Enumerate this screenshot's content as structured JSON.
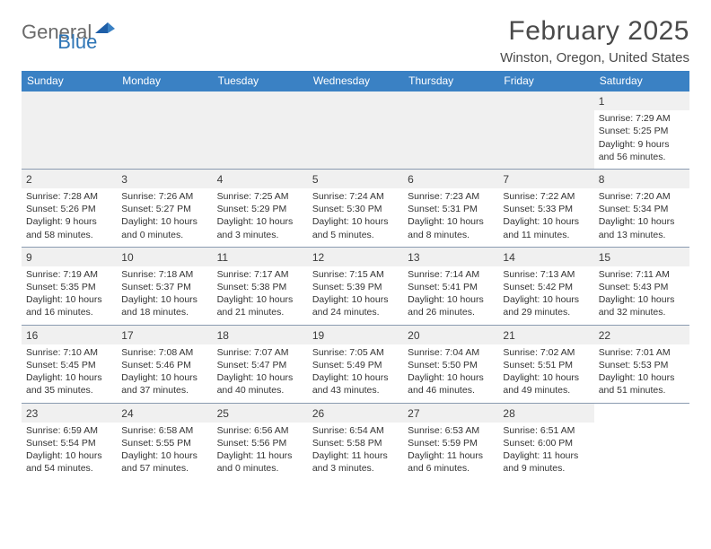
{
  "logo": {
    "text1": "General",
    "text2": "Blue"
  },
  "title": "February 2025",
  "location": "Winston, Oregon, United States",
  "colors": {
    "header_bg": "#3a81c4",
    "header_text": "#ffffff",
    "rule": "#8a9bb0",
    "cell_grey": "#f0f0f0",
    "text": "#333333",
    "logo_grey": "#6a6a6a",
    "logo_blue": "#2e75b6"
  },
  "day_names": [
    "Sunday",
    "Monday",
    "Tuesday",
    "Wednesday",
    "Thursday",
    "Friday",
    "Saturday"
  ],
  "weeks": [
    [
      {
        "empty": true,
        "grey": true
      },
      {
        "empty": true,
        "grey": true
      },
      {
        "empty": true,
        "grey": true
      },
      {
        "empty": true,
        "grey": true
      },
      {
        "empty": true,
        "grey": true
      },
      {
        "empty": true,
        "grey": true
      },
      {
        "n": "1",
        "sr": "7:29 AM",
        "ss": "5:25 PM",
        "dl": "9 hours and 56 minutes.",
        "grey_num": true
      }
    ],
    [
      {
        "n": "2",
        "sr": "7:28 AM",
        "ss": "5:26 PM",
        "dl": "9 hours and 58 minutes."
      },
      {
        "n": "3",
        "sr": "7:26 AM",
        "ss": "5:27 PM",
        "dl": "10 hours and 0 minutes."
      },
      {
        "n": "4",
        "sr": "7:25 AM",
        "ss": "5:29 PM",
        "dl": "10 hours and 3 minutes."
      },
      {
        "n": "5",
        "sr": "7:24 AM",
        "ss": "5:30 PM",
        "dl": "10 hours and 5 minutes."
      },
      {
        "n": "6",
        "sr": "7:23 AM",
        "ss": "5:31 PM",
        "dl": "10 hours and 8 minutes."
      },
      {
        "n": "7",
        "sr": "7:22 AM",
        "ss": "5:33 PM",
        "dl": "10 hours and 11 minutes."
      },
      {
        "n": "8",
        "sr": "7:20 AM",
        "ss": "5:34 PM",
        "dl": "10 hours and 13 minutes."
      }
    ],
    [
      {
        "n": "9",
        "sr": "7:19 AM",
        "ss": "5:35 PM",
        "dl": "10 hours and 16 minutes."
      },
      {
        "n": "10",
        "sr": "7:18 AM",
        "ss": "5:37 PM",
        "dl": "10 hours and 18 minutes."
      },
      {
        "n": "11",
        "sr": "7:17 AM",
        "ss": "5:38 PM",
        "dl": "10 hours and 21 minutes."
      },
      {
        "n": "12",
        "sr": "7:15 AM",
        "ss": "5:39 PM",
        "dl": "10 hours and 24 minutes."
      },
      {
        "n": "13",
        "sr": "7:14 AM",
        "ss": "5:41 PM",
        "dl": "10 hours and 26 minutes."
      },
      {
        "n": "14",
        "sr": "7:13 AM",
        "ss": "5:42 PM",
        "dl": "10 hours and 29 minutes."
      },
      {
        "n": "15",
        "sr": "7:11 AM",
        "ss": "5:43 PM",
        "dl": "10 hours and 32 minutes."
      }
    ],
    [
      {
        "n": "16",
        "sr": "7:10 AM",
        "ss": "5:45 PM",
        "dl": "10 hours and 35 minutes."
      },
      {
        "n": "17",
        "sr": "7:08 AM",
        "ss": "5:46 PM",
        "dl": "10 hours and 37 minutes."
      },
      {
        "n": "18",
        "sr": "7:07 AM",
        "ss": "5:47 PM",
        "dl": "10 hours and 40 minutes."
      },
      {
        "n": "19",
        "sr": "7:05 AM",
        "ss": "5:49 PM",
        "dl": "10 hours and 43 minutes."
      },
      {
        "n": "20",
        "sr": "7:04 AM",
        "ss": "5:50 PM",
        "dl": "10 hours and 46 minutes."
      },
      {
        "n": "21",
        "sr": "7:02 AM",
        "ss": "5:51 PM",
        "dl": "10 hours and 49 minutes."
      },
      {
        "n": "22",
        "sr": "7:01 AM",
        "ss": "5:53 PM",
        "dl": "10 hours and 51 minutes."
      }
    ],
    [
      {
        "n": "23",
        "sr": "6:59 AM",
        "ss": "5:54 PM",
        "dl": "10 hours and 54 minutes."
      },
      {
        "n": "24",
        "sr": "6:58 AM",
        "ss": "5:55 PM",
        "dl": "10 hours and 57 minutes."
      },
      {
        "n": "25",
        "sr": "6:56 AM",
        "ss": "5:56 PM",
        "dl": "11 hours and 0 minutes."
      },
      {
        "n": "26",
        "sr": "6:54 AM",
        "ss": "5:58 PM",
        "dl": "11 hours and 3 minutes."
      },
      {
        "n": "27",
        "sr": "6:53 AM",
        "ss": "5:59 PM",
        "dl": "11 hours and 6 minutes."
      },
      {
        "n": "28",
        "sr": "6:51 AM",
        "ss": "6:00 PM",
        "dl": "11 hours and 9 minutes."
      },
      {
        "empty": true
      }
    ]
  ],
  "labels": {
    "sunrise": "Sunrise:",
    "sunset": "Sunset:",
    "daylight": "Daylight:"
  }
}
